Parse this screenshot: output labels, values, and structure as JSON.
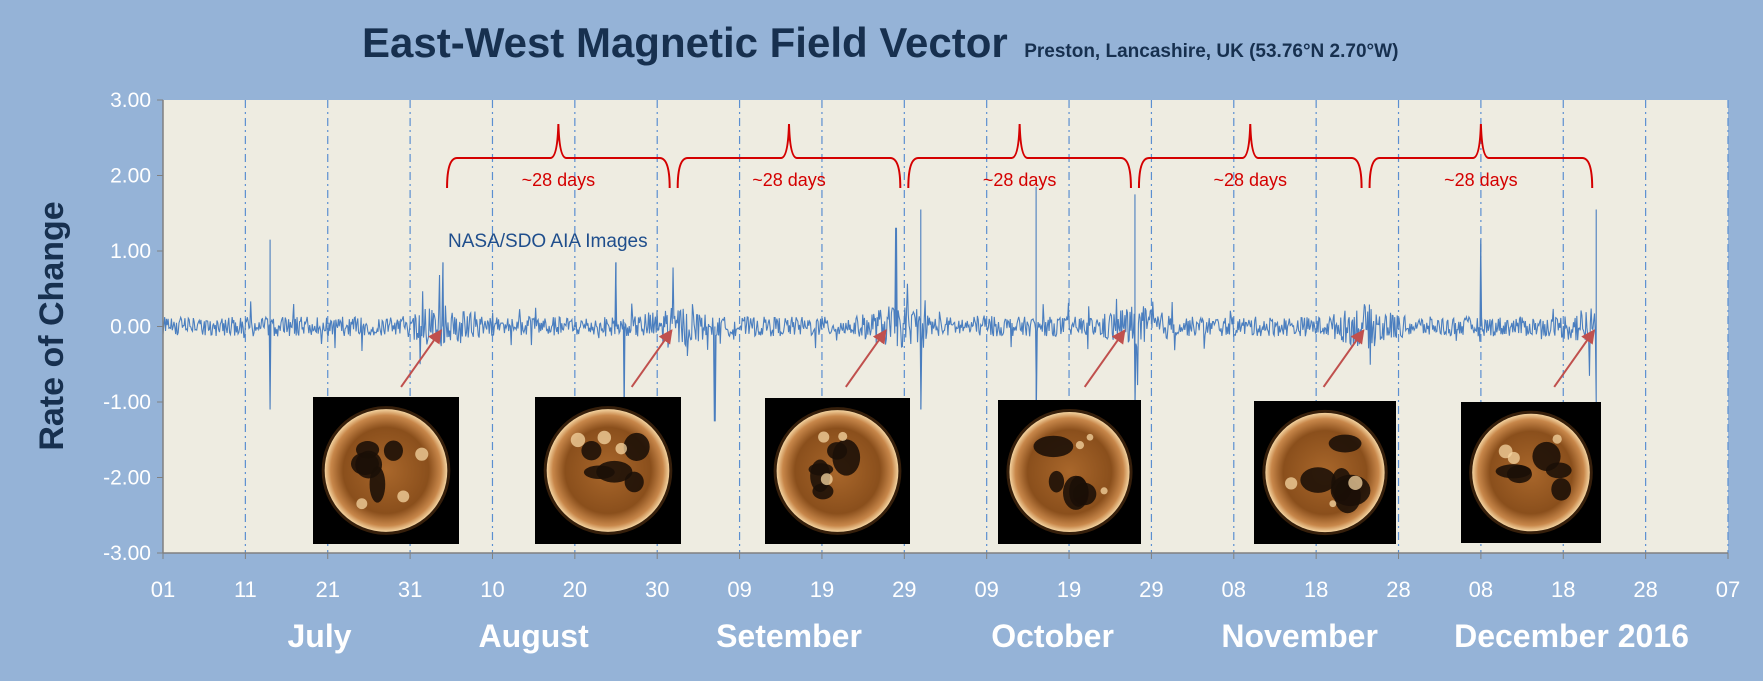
{
  "chart_data": {
    "type": "line",
    "title": "East-West Magnetic Field Vector",
    "subtitle": "Preston, Lancashire, UK  (53.76°N 2.70°W)",
    "xlabel": "",
    "ylabel": "Rate of Change",
    "ylim": [
      -3.0,
      3.0
    ],
    "y_ticks": [
      "3.00",
      "2.00",
      "1.00",
      "0.00",
      "-1.00",
      "-2.00",
      "-3.00"
    ],
    "xlim": [
      "2016-07-01",
      "2017-01-07"
    ],
    "x_ticks": [
      {
        "label": "01",
        "date": "2016-07-01"
      },
      {
        "label": "11",
        "date": "2016-07-11"
      },
      {
        "label": "21",
        "date": "2016-07-21"
      },
      {
        "label": "31",
        "date": "2016-07-31"
      },
      {
        "label": "10",
        "date": "2016-08-10"
      },
      {
        "label": "20",
        "date": "2016-08-20"
      },
      {
        "label": "30",
        "date": "2016-08-30"
      },
      {
        "label": "09",
        "date": "2016-09-09"
      },
      {
        "label": "19",
        "date": "2016-09-19"
      },
      {
        "label": "29",
        "date": "2016-09-29"
      },
      {
        "label": "09",
        "date": "2016-10-09"
      },
      {
        "label": "19",
        "date": "2016-10-19"
      },
      {
        "label": "29",
        "date": "2016-10-29"
      },
      {
        "label": "08",
        "date": "2016-11-08"
      },
      {
        "label": "18",
        "date": "2016-11-18"
      },
      {
        "label": "28",
        "date": "2016-11-28"
      },
      {
        "label": "08",
        "date": "2016-12-08"
      },
      {
        "label": "18",
        "date": "2016-12-18"
      },
      {
        "label": "28",
        "date": "2016-12-28"
      },
      {
        "label": "07",
        "date": "2017-01-07"
      }
    ],
    "month_labels": [
      {
        "text": "July",
        "date": "2016-07-20"
      },
      {
        "text": "August",
        "date": "2016-08-15"
      },
      {
        "text": "Setember",
        "date": "2016-09-15"
      },
      {
        "text": "October",
        "date": "2016-10-17"
      },
      {
        "text": "November",
        "date": "2016-11-16"
      },
      {
        "text": "December 2016",
        "date": "2016-12-19"
      }
    ],
    "grid": "vertical dash-dot at x ticks",
    "series": [
      {
        "color": "#4a7ebf",
        "description_points": [
          {
            "date": "2016-07-01",
            "y": 0.0
          },
          {
            "date": "2016-07-14",
            "y": 1.15
          },
          {
            "date": "2016-07-14",
            "y": -1.1
          },
          {
            "date": "2016-08-04",
            "y": 0.85
          },
          {
            "date": "2016-08-25",
            "y": 0.85
          },
          {
            "date": "2016-08-26",
            "y": -1.15
          },
          {
            "date": "2016-09-06",
            "y": -1.25
          },
          {
            "date": "2016-09-28",
            "y": 1.3
          },
          {
            "date": "2016-10-01",
            "y": 1.55
          },
          {
            "date": "2016-10-01",
            "y": -1.1
          },
          {
            "date": "2016-10-15",
            "y": 1.85
          },
          {
            "date": "2016-10-15",
            "y": -1.0
          },
          {
            "date": "2016-10-27",
            "y": 1.75
          },
          {
            "date": "2016-10-27",
            "y": -1.05
          },
          {
            "date": "2016-12-08",
            "y": 1.15
          },
          {
            "date": "2016-12-22",
            "y": 1.55
          },
          {
            "date": "2016-12-22",
            "y": -1.0
          }
        ],
        "end_date": "2016-12-22"
      }
    ],
    "annotations": {
      "cycles": [
        {
          "label": "~28 days",
          "start": "2016-08-04",
          "end": "2016-09-01"
        },
        {
          "label": "~28 days",
          "start": "2016-09-01",
          "end": "2016-09-29"
        },
        {
          "label": "~28 days",
          "start": "2016-09-29",
          "end": "2016-10-27"
        },
        {
          "label": "~28 days",
          "start": "2016-10-27",
          "end": "2016-11-24"
        },
        {
          "label": "~28 days",
          "start": "2016-11-24",
          "end": "2016-12-22"
        }
      ],
      "image_note": "NASA/SDO AIA Images",
      "sun_images": [
        {
          "name": "sun-image-1",
          "arrow_to": "2016-08-04"
        },
        {
          "name": "sun-image-2",
          "arrow_to": "2016-09-01"
        },
        {
          "name": "sun-image-3",
          "arrow_to": "2016-09-27"
        },
        {
          "name": "sun-image-4",
          "arrow_to": "2016-10-26"
        },
        {
          "name": "sun-image-5",
          "arrow_to": "2016-11-24"
        },
        {
          "name": "sun-image-6",
          "arrow_to": "2016-12-22"
        }
      ]
    },
    "colors": {
      "background": "#95b3d7",
      "plot_area": "#eeece1",
      "series": "#4a7ebf",
      "annotation": "#d40000",
      "title": "#17304f"
    }
  }
}
